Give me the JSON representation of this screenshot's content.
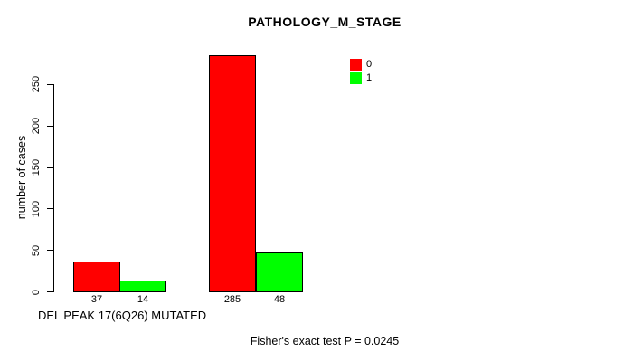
{
  "chart_data": {
    "type": "bar",
    "title": "PATHOLOGY_M_STAGE",
    "ylabel": "number of cases",
    "xlabel": "DEL PEAK 17(6Q26) MUTATED",
    "annotation": "Fisher's exact test P = 0.0245",
    "ylim": [
      0,
      250
    ],
    "yticks": [
      0,
      50,
      100,
      150,
      200,
      250
    ],
    "grid": false,
    "legend_position": "top-right",
    "legend": [
      {
        "label": "0",
        "color": "#ff0000"
      },
      {
        "label": "1",
        "color": "#00ff00"
      }
    ],
    "groups": [
      {
        "bars": [
          {
            "series": "0",
            "value": 37,
            "label": "37",
            "color": "#ff0000"
          },
          {
            "series": "1",
            "value": 14,
            "label": "14",
            "color": "#00ff00"
          }
        ]
      },
      {
        "bars": [
          {
            "series": "0",
            "value": 285,
            "label": "285",
            "color": "#ff0000"
          },
          {
            "series": "1",
            "value": 48,
            "label": "48",
            "color": "#00ff00"
          }
        ]
      }
    ],
    "colors": {
      "background": "#ffffff",
      "axis": "#000000",
      "text": "#000000"
    }
  }
}
